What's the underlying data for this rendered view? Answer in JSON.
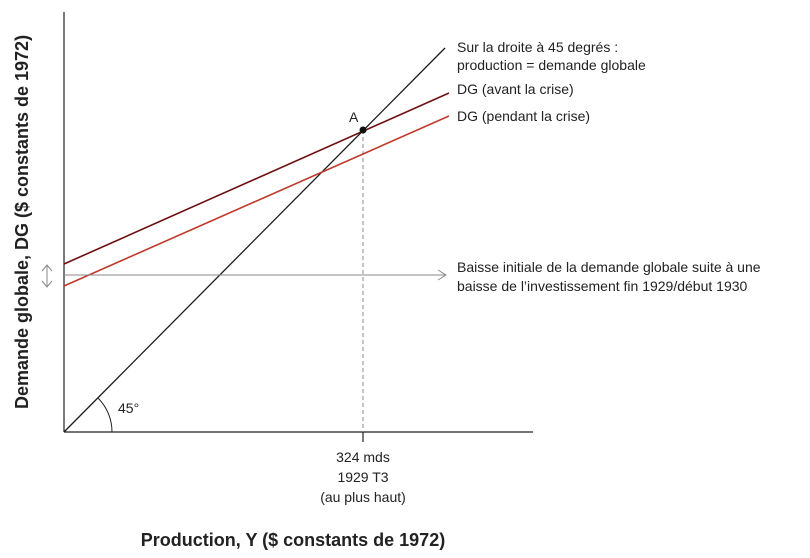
{
  "axes": {
    "y_title": "Demande globale, DG ($ constants de 1972)",
    "x_title": "Production, Y ($ constants de 1972)"
  },
  "lines": {
    "line45": {
      "label_1": "Sur la droite à 45 degrés :",
      "label_2": "production = demande globale",
      "color": "#1a1a1a"
    },
    "ag_before": {
      "label": "DG (avant la crise)",
      "color": "#6e1010"
    },
    "ag_during": {
      "label": "DG (pendant la crise)",
      "color": "#c0392b"
    }
  },
  "annotations": {
    "point_a": "A",
    "angle": "45°",
    "drop_1": "Baisse initiale de la demande globale suite à une",
    "drop_2": "baisse de l’investissement fin 1929/début 1930",
    "x_marker_1": "324 mds",
    "x_marker_2": "1929 T3",
    "x_marker_3": "(au plus haut)"
  },
  "colors": {
    "axis": "#222222",
    "guide": "#888888"
  }
}
